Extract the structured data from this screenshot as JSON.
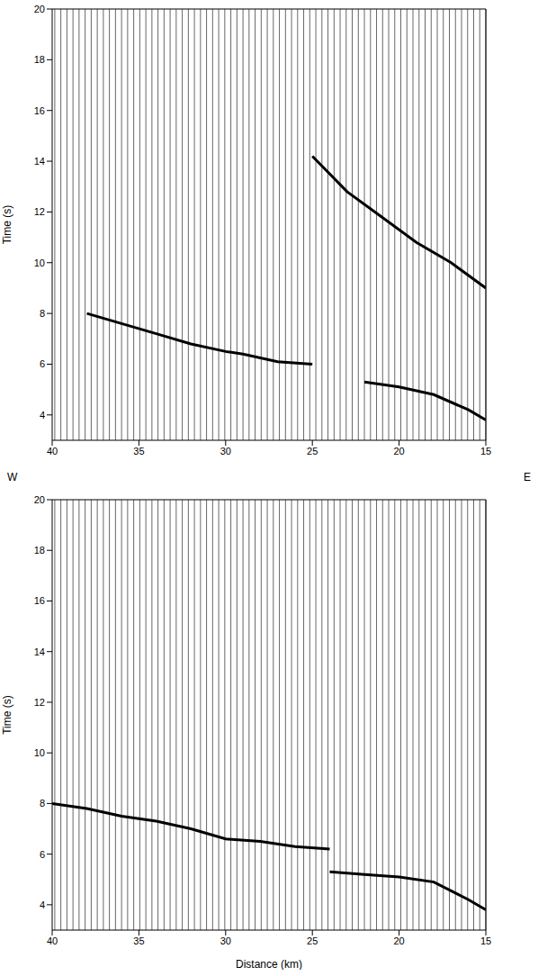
{
  "chart_data": [
    {
      "type": "line",
      "y_label": "Time (s)",
      "xlim": [
        40,
        15
      ],
      "xticks": [
        40,
        35,
        30,
        25,
        20,
        15
      ],
      "ylim": [
        3,
        20
      ],
      "yticks": [
        4,
        6,
        8,
        10,
        12,
        14,
        16,
        18,
        20
      ],
      "grid": false,
      "annotations": [
        "W",
        "E"
      ],
      "traces": [
        15.0,
        15.35,
        15.7,
        16.05,
        16.4,
        16.75,
        17.1,
        17.45,
        17.8,
        18.15,
        18.5,
        18.85,
        19.2,
        19.55,
        19.9,
        20.25,
        20.6,
        20.95,
        21.3,
        21.65,
        22.0,
        22.35,
        22.7,
        23.05,
        23.4,
        23.75,
        24.1,
        24.45,
        24.8,
        25.15,
        25.5,
        25.85,
        26.2,
        26.55,
        26.9,
        27.25,
        27.6,
        27.95,
        28.3,
        28.65,
        29.0,
        29.35,
        29.7,
        30.05,
        30.4,
        30.75,
        31.1,
        31.45,
        31.8,
        32.15,
        32.5,
        32.85,
        33.2,
        33.55,
        33.9,
        34.25,
        34.6,
        34.95,
        35.3,
        35.65,
        36.0,
        36.35,
        36.7,
        37.05,
        37.4,
        37.75,
        38.1,
        38.45,
        38.8,
        39.15,
        39.5,
        39.85
      ],
      "series": [
        {
          "color": "#000000",
          "line_style": "solid",
          "x": [
            15,
            16,
            18,
            20,
            22
          ],
          "values": [
            3.8,
            4.2,
            4.8,
            5.1,
            5.3
          ]
        },
        {
          "color": "#000000",
          "line_style": "solid",
          "x": [
            25,
            27,
            29,
            30,
            32,
            34,
            36,
            38
          ],
          "values": [
            6.0,
            6.1,
            6.4,
            6.5,
            6.8,
            7.2,
            7.6,
            8.0
          ]
        },
        {
          "color": "#000000",
          "line_style": "solid",
          "x": [
            15,
            17,
            19,
            21,
            23,
            25
          ],
          "values": [
            9.0,
            10.0,
            10.8,
            11.8,
            12.8,
            14.2
          ]
        }
      ]
    },
    {
      "type": "line",
      "x_label": "Distance (km)",
      "y_label": "Time (s)",
      "xlim": [
        40,
        15
      ],
      "xticks": [
        40,
        35,
        30,
        25,
        20,
        15
      ],
      "ylim": [
        3,
        20
      ],
      "yticks": [
        4,
        6,
        8,
        10,
        12,
        14,
        16,
        18,
        20
      ],
      "grid": false,
      "traces": [
        15.0,
        15.35,
        15.7,
        16.05,
        16.4,
        16.75,
        17.1,
        17.45,
        17.8,
        18.15,
        18.5,
        18.85,
        19.2,
        19.55,
        19.9,
        20.25,
        20.6,
        20.95,
        21.3,
        21.65,
        22.0,
        22.35,
        22.7,
        23.05,
        23.4,
        23.75,
        24.1,
        24.45,
        24.8,
        25.15,
        25.5,
        25.85,
        26.2,
        26.55,
        26.9,
        27.25,
        27.6,
        27.95,
        28.3,
        28.65,
        29.0,
        29.35,
        29.7,
        30.05,
        30.4,
        30.75,
        31.1,
        31.45,
        31.8,
        32.15,
        32.5,
        32.85,
        33.2,
        33.55,
        33.9,
        34.25,
        34.6,
        34.95,
        35.3,
        35.65,
        36.0,
        36.35,
        36.7,
        37.05,
        37.4,
        37.75,
        38.1,
        38.45,
        38.8,
        39.15,
        39.5,
        39.85
      ],
      "series": [
        {
          "color": "#000000",
          "line_style": "solid",
          "x": [
            15,
            16,
            18,
            20,
            22,
            24
          ],
          "values": [
            3.8,
            4.2,
            4.9,
            5.1,
            5.2,
            5.3
          ]
        },
        {
          "color": "#000000",
          "line_style": "solid",
          "x": [
            24,
            26,
            28,
            30,
            32,
            34,
            36,
            38,
            40
          ],
          "values": [
            6.2,
            6.3,
            6.5,
            6.6,
            7.0,
            7.3,
            7.5,
            7.8,
            8.0
          ]
        }
      ]
    }
  ]
}
